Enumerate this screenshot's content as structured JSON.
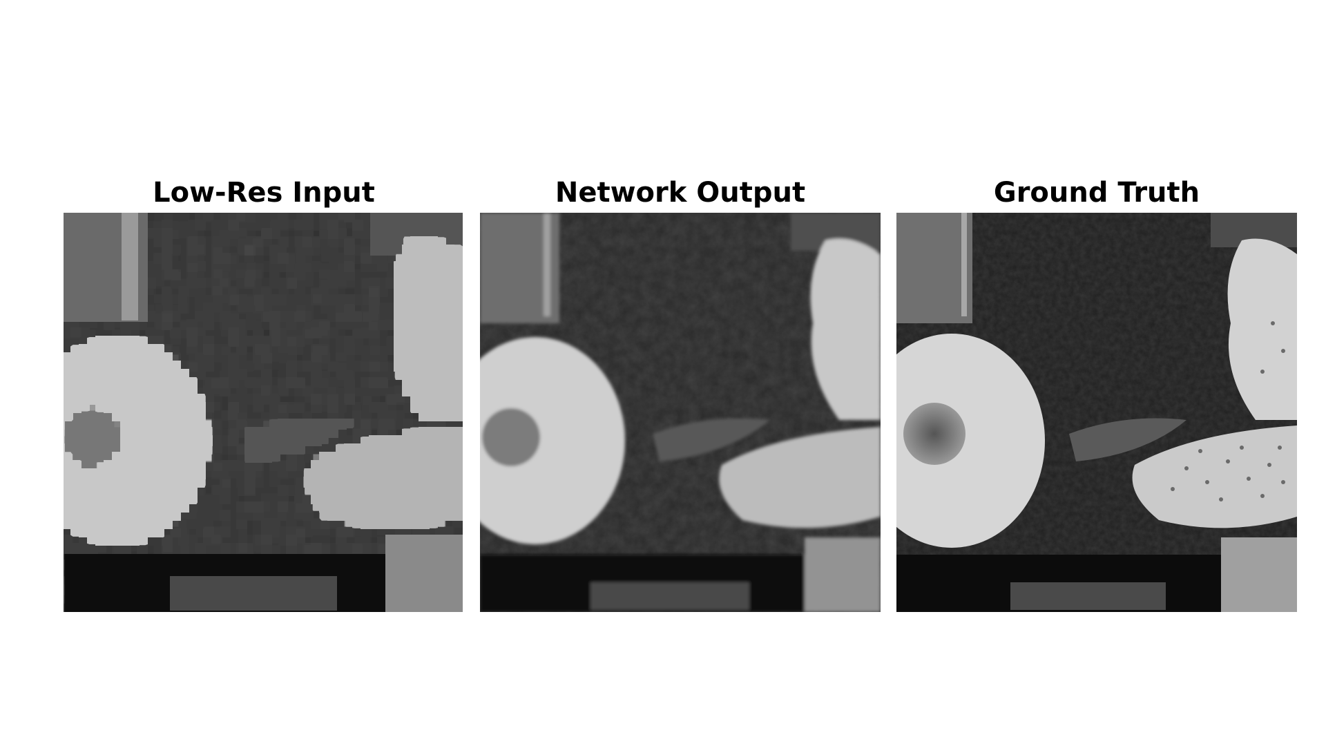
{
  "panels": [
    {
      "title": "Low-Res Input"
    },
    {
      "title": "Network Output"
    },
    {
      "title": "Ground Truth"
    }
  ],
  "colors": {
    "background": "#ffffff",
    "title": "#000000"
  }
}
